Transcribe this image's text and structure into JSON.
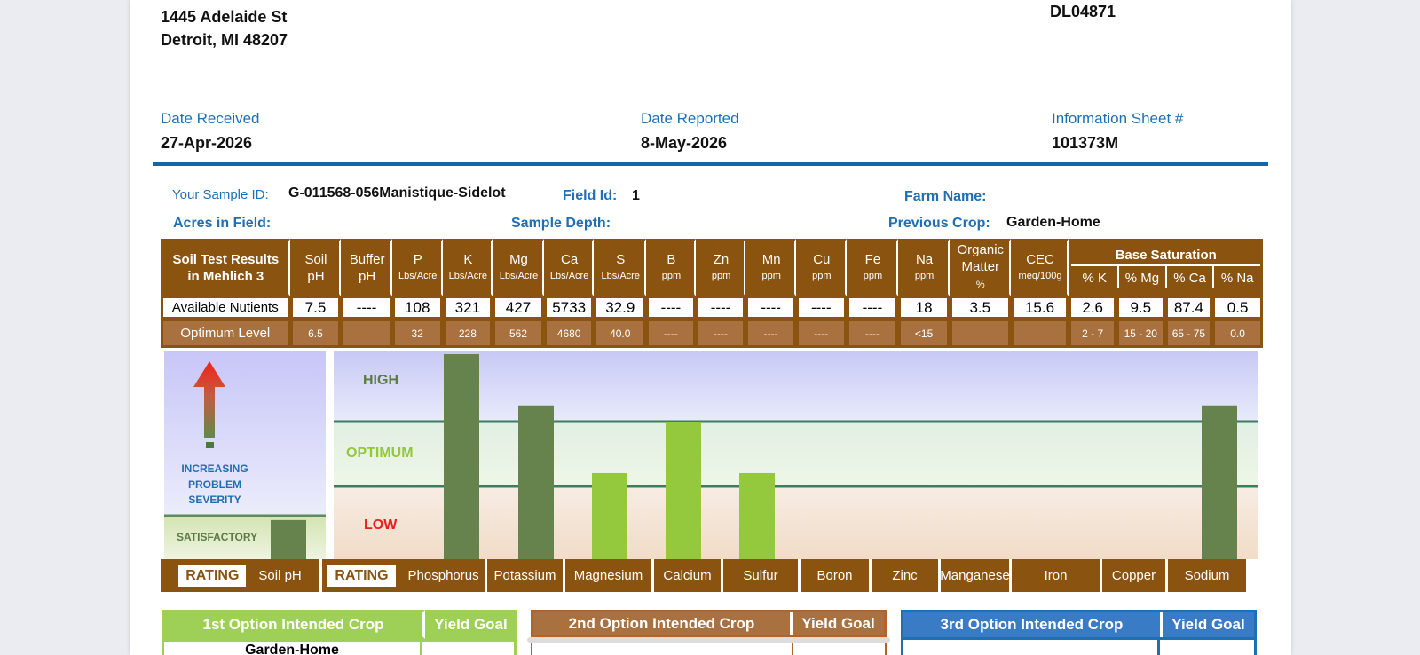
{
  "address": {
    "line1": "1445 Adelaide St",
    "line2": "Detroit, MI  48207"
  },
  "account_code": "DL04871",
  "dates": {
    "received_label": "Date Received",
    "received_value": "27-Apr-2026",
    "reported_label": "Date Reported",
    "reported_value": "8-May-2026",
    "sheet_label": "Information Sheet #",
    "sheet_value": "101373M"
  },
  "sample": {
    "id_label": "Your Sample ID:",
    "id_value": "G-011568-056Manistique-Sidelot",
    "field_label": "Field Id:",
    "field_value": "1",
    "farm_label": "Farm Name:",
    "farm_value": "",
    "acres_label": "Acres in Field:",
    "acres_value": "",
    "depth_label": "Sample Depth:",
    "depth_value": "",
    "prev_label": "Previous Crop:",
    "prev_value": "Garden-Home"
  },
  "table": {
    "title1": "Soil Test Results",
    "title2": "in Mehlich 3",
    "columns": [
      {
        "n1": "Soil",
        "n2": "pH",
        "unit": ""
      },
      {
        "n1": "Buffer",
        "n2": "pH",
        "unit": ""
      },
      {
        "n1": "P",
        "n2": "",
        "unit": "Lbs/Acre"
      },
      {
        "n1": "K",
        "n2": "",
        "unit": "Lbs/Acre"
      },
      {
        "n1": "Mg",
        "n2": "",
        "unit": "Lbs/Acre"
      },
      {
        "n1": "Ca",
        "n2": "",
        "unit": "Lbs/Acre"
      },
      {
        "n1": "S",
        "n2": "",
        "unit": "Lbs/Acre"
      },
      {
        "n1": "B",
        "n2": "",
        "unit": "ppm"
      },
      {
        "n1": "Zn",
        "n2": "",
        "unit": "ppm"
      },
      {
        "n1": "Mn",
        "n2": "",
        "unit": "ppm"
      },
      {
        "n1": "Cu",
        "n2": "",
        "unit": "ppm"
      },
      {
        "n1": "Fe",
        "n2": "",
        "unit": "ppm"
      },
      {
        "n1": "Na",
        "n2": "",
        "unit": "ppm"
      },
      {
        "n1": "Organic",
        "n2": "Matter",
        "unit": "%"
      },
      {
        "n1": "CEC",
        "n2": "",
        "unit": "meq/100g"
      }
    ],
    "base_saturation_title": "Base Saturation",
    "base_columns": [
      "% K",
      "% Mg",
      "% Ca",
      "% Na"
    ],
    "available_label": "Available Nutients",
    "available": [
      "7.5",
      "----",
      "108",
      "321",
      "427",
      "5733",
      "32.9",
      "----",
      "----",
      "----",
      "----",
      "----",
      "18",
      "3.5",
      "15.6",
      "2.6",
      "9.5",
      "87.4",
      "0.5"
    ],
    "optimum_label": "Optimum Level",
    "optimum": [
      "6.5",
      "",
      "32",
      "228",
      "562",
      "4680",
      "40.0",
      "----",
      "----",
      "----",
      "----",
      "----",
      "<15",
      "",
      "",
      "2 - 7",
      "15 - 20",
      "65 - 75",
      "0.0"
    ]
  },
  "chart": {
    "severity_label": [
      "INCREASING",
      "PROBLEM",
      "SEVERITY"
    ],
    "satisfactory_label": "SATISFACTORY",
    "high_label": "HIGH",
    "optimum_label": "OPTIMUM",
    "low_label": "LOW",
    "colors": {
      "dark_bar": "#66834d",
      "light_bar": "#95c93d",
      "arrow": "#e8291c",
      "brown": "#8a5410"
    }
  },
  "chart_data": {
    "type": "bar",
    "categories": [
      "Soil pH",
      "Phosphorus",
      "Potassium",
      "Magnesium",
      "Calcium",
      "Sulfur",
      "Boron",
      "Zinc",
      "Manganese",
      "Iron",
      "Copper",
      "Sodium"
    ],
    "values": [
      0.29,
      1.0,
      0.75,
      0.42,
      0.67,
      0.42,
      null,
      null,
      null,
      null,
      null,
      0.75
    ],
    "levels": [
      "Satisfactory",
      "High",
      "High",
      "Low",
      "Optimum",
      "Low",
      null,
      null,
      null,
      null,
      null,
      "High"
    ],
    "ylabels": [
      "LOW",
      "OPTIMUM",
      "HIGH"
    ]
  },
  "rating_label": "RATING",
  "nutrient_labels": [
    "Soil pH",
    "Phosphorus",
    "Potassium",
    "Magnesium",
    "Calcium",
    "Sulfur",
    "Boron",
    "Zinc",
    "Manganese",
    "Iron",
    "Copper",
    "Sodium"
  ],
  "crops": {
    "first_title": "1st Option Intended Crop",
    "first_value": "Garden-Home",
    "second_title": "2nd Option Intended Crop",
    "third_title": "3rd Option Intended Crop",
    "yield_label": "Yield Goal"
  }
}
